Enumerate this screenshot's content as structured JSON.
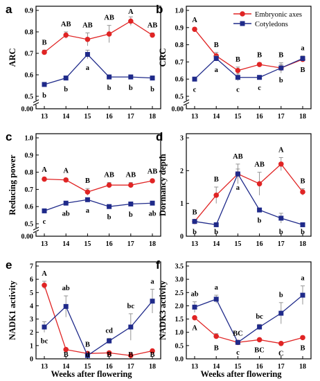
{
  "xlabel": "Weeks after flowering",
  "legend": [
    "Embryonic axes",
    "Cotyledons"
  ],
  "colors": {
    "embryonic": "#e02424",
    "cotyledon": "#1f2a8a"
  },
  "chart_data": [
    {
      "type": "line",
      "letter": "a",
      "ylabel": "ARC",
      "x": [
        13,
        14,
        15,
        16,
        17,
        18
      ],
      "xticks": [
        "13",
        "14",
        "15",
        "16",
        "17",
        "18"
      ],
      "ylim": [
        0.5,
        0.9
      ],
      "yticks": [
        "0.9",
        "0.8",
        "0.7",
        "0.6",
        "0.5",
        "0.00"
      ],
      "axis_break": true,
      "series": [
        {
          "name": "Embryonic axes",
          "values": [
            0.705,
            0.785,
            0.765,
            0.79,
            0.85,
            0.785
          ],
          "errors": [
            0.01,
            0.015,
            0.03,
            0.04,
            0.02,
            0.01
          ],
          "labels": [
            "B",
            "AB",
            "AB",
            "AB",
            "A",
            "AB"
          ]
        },
        {
          "name": "Cotyledons",
          "values": [
            0.555,
            0.585,
            0.695,
            0.59,
            0.59,
            0.585
          ],
          "errors": [
            0.01,
            0.01,
            0.02,
            0.01,
            0.01,
            0.01
          ],
          "labels": [
            "b",
            "b",
            "a",
            "b",
            "b",
            "b"
          ]
        }
      ]
    },
    {
      "type": "line",
      "letter": "b",
      "ylabel": "CRC",
      "x": [
        13,
        14,
        15,
        16,
        17,
        18
      ],
      "xticks": [
        "13",
        "14",
        "15",
        "16",
        "17",
        "18"
      ],
      "ylim": [
        0.5,
        1.0
      ],
      "yticks": [
        "1.0",
        "0.9",
        "0.8",
        "0.7",
        "0.6",
        "0.5",
        "0.00"
      ],
      "axis_break": true,
      "series": [
        {
          "name": "Embryonic axes",
          "values": [
            0.89,
            0.735,
            0.65,
            0.685,
            0.665,
            0.715
          ],
          "errors": [
            0.01,
            0.02,
            0.02,
            0.01,
            0.03,
            0.01
          ],
          "labels": [
            "A",
            "B",
            "B",
            "B",
            "B",
            "B"
          ]
        },
        {
          "name": "Cotyledons",
          "values": [
            0.6,
            0.72,
            0.61,
            0.61,
            0.665,
            0.72
          ],
          "errors": [
            0.01,
            0.015,
            0.02,
            0.01,
            0.02,
            0.015
          ],
          "labels": [
            "c",
            "a",
            "c",
            "c",
            "b",
            "a"
          ]
        }
      ]
    },
    {
      "type": "line",
      "letter": "c",
      "ylabel": "Reducing power",
      "x": [
        13,
        14,
        15,
        16,
        17,
        18
      ],
      "xticks": [
        "13",
        "14",
        "15",
        "16",
        "17",
        "18"
      ],
      "ylim": [
        0.5,
        1.0
      ],
      "yticks": [
        "1.0",
        "0.9",
        "0.8",
        "0.7",
        "0.6",
        "0.5",
        "0.00"
      ],
      "axis_break": true,
      "series": [
        {
          "name": "Embryonic axes",
          "values": [
            0.76,
            0.755,
            0.685,
            0.725,
            0.725,
            0.75
          ],
          "errors": [
            0.01,
            0.01,
            0.02,
            0.015,
            0.015,
            0.01
          ],
          "labels": [
            "A",
            "A",
            "B",
            "AB",
            "AB",
            "AB"
          ]
        },
        {
          "name": "Cotyledons",
          "values": [
            0.575,
            0.62,
            0.64,
            0.6,
            0.615,
            0.62
          ],
          "errors": [
            0.01,
            0.01,
            0.01,
            0.01,
            0.01,
            0.01
          ],
          "labels": [
            "c",
            "ab",
            "a",
            "b",
            "b",
            "ab"
          ]
        }
      ]
    },
    {
      "type": "line",
      "letter": "d",
      "ylabel": "Dormancy depth",
      "x": [
        13,
        14,
        15,
        16,
        17,
        18
      ],
      "xticks": [
        "13",
        "14",
        "15",
        "16",
        "17",
        "18"
      ],
      "ylim": [
        0,
        3
      ],
      "yticks": [
        "3",
        "2",
        "1",
        "0"
      ],
      "axis_break": false,
      "series": [
        {
          "name": "Embryonic axes",
          "values": [
            0.45,
            1.25,
            1.9,
            1.6,
            2.2,
            1.35
          ],
          "errors": [
            0.05,
            0.25,
            0.3,
            0.35,
            0.2,
            0.1
          ],
          "labels": [
            "B",
            "B",
            "AB",
            "AB",
            "A",
            "B"
          ]
        },
        {
          "name": "Cotyledons",
          "values": [
            0.45,
            0.35,
            1.9,
            0.8,
            0.55,
            0.35
          ],
          "errors": [
            0.05,
            0.05,
            0.15,
            0.05,
            0.15,
            0.05
          ],
          "labels": [
            "b",
            "b",
            "a",
            "b",
            "b",
            "b"
          ]
        }
      ]
    },
    {
      "type": "line",
      "letter": "e",
      "ylabel": "NADK1 activity",
      "x": [
        13,
        14,
        15,
        16,
        17,
        18
      ],
      "xticks": [
        "13",
        "14",
        "15",
        "16",
        "17",
        "18"
      ],
      "ylim": [
        0,
        7
      ],
      "yticks": [
        "7",
        "6",
        "5",
        "4",
        "3",
        "2",
        "1",
        "0"
      ],
      "axis_break": false,
      "series": [
        {
          "name": "Embryonic axes",
          "values": [
            5.55,
            0.7,
            0.4,
            0.45,
            0.25,
            0.6
          ],
          "errors": [
            0.3,
            0.1,
            0.1,
            0.1,
            0.05,
            0.1
          ],
          "labels": [
            "A",
            "B",
            "B",
            "B",
            "B",
            "B"
          ]
        },
        {
          "name": "Cotyledons",
          "values": [
            2.4,
            3.95,
            0.25,
            1.35,
            2.4,
            4.35
          ],
          "errors": [
            0.4,
            0.8,
            0.05,
            0.2,
            1.0,
            0.9
          ],
          "labels": [
            "bc",
            "ab",
            "d",
            "cd",
            "bc",
            "a"
          ]
        }
      ]
    },
    {
      "type": "line",
      "letter": "f",
      "ylabel": "NADK3 activity",
      "x": [
        13,
        14,
        15,
        16,
        17,
        18
      ],
      "xticks": [
        "13",
        "14",
        "15",
        "16",
        "17",
        "18"
      ],
      "ylim": [
        0,
        3.5
      ],
      "yticks": [
        "3.5",
        "3.0",
        "2.5",
        "2.0",
        "1.5",
        "1.0",
        "0.5",
        "0.0"
      ],
      "axis_break": false,
      "series": [
        {
          "name": "Embryonic axes",
          "values": [
            1.55,
            0.85,
            0.62,
            0.72,
            0.58,
            0.8
          ],
          "errors": [
            0.05,
            0.1,
            0.05,
            0.05,
            0.05,
            0.05
          ],
          "labels": [
            "A",
            "B",
            "BC",
            "BC",
            "C",
            "B"
          ]
        },
        {
          "name": "Cotyledons",
          "values": [
            1.95,
            2.25,
            0.62,
            1.2,
            1.72,
            2.4
          ],
          "errors": [
            0.2,
            0.15,
            0.05,
            0.1,
            0.4,
            0.35
          ],
          "labels": [
            "ab",
            "a",
            "c",
            "bc",
            "b",
            "a"
          ]
        }
      ]
    }
  ]
}
